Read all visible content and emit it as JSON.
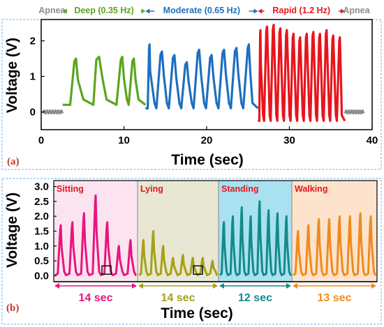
{
  "chart_data": [
    {
      "panel": "(a)",
      "type": "line",
      "xlabel": "Time (sec)",
      "ylabel": "Voltage (V)",
      "xlim": [
        0,
        40
      ],
      "ylim": [
        -0.5,
        2.6
      ],
      "xticks": [
        0,
        10,
        20,
        30,
        40
      ],
      "yticks": [
        0,
        1,
        2
      ],
      "phases": [
        {
          "label": "Apnea",
          "start": 0,
          "end": 2.6,
          "color": "#8c8c8c"
        },
        {
          "label": "Deep (0.35 Hz)",
          "start": 2.6,
          "end": 12.6,
          "color": "#5aa51e"
        },
        {
          "label": "Moderate (0.65 Hz)",
          "start": 12.6,
          "end": 26.2,
          "color": "#1e6fbf"
        },
        {
          "label": "Rapid (1.2 Hz)",
          "start": 26.2,
          "end": 36.7,
          "color": "#e8141c"
        },
        {
          "label": "Apnea",
          "start": 36.7,
          "end": 39.5,
          "color": "#8c8c8c"
        }
      ],
      "series": [
        {
          "color": "#8c8c8c",
          "x": [
            0.2,
            2.6
          ],
          "y": [
            0,
            0
          ],
          "kind": "flat"
        },
        {
          "color": "#5aa51e",
          "start": 2.6,
          "end": 12.6,
          "peaks_x": [
            4.2,
            7.0,
            9.8,
            11.2
          ],
          "peaks_y": [
            1.5,
            1.55,
            1.55,
            1.5
          ],
          "baseline": 0.2,
          "kind": "pulses"
        },
        {
          "color": "#1e6fbf",
          "start": 12.6,
          "end": 26.2,
          "peaks_x": [
            13.1,
            14.6,
            16.1,
            17.6,
            19.1,
            20.6,
            22.1,
            23.6,
            25.1
          ],
          "peaks_y": [
            1.9,
            1.7,
            1.6,
            1.4,
            1.75,
            1.6,
            1.75,
            1.8,
            1.9
          ],
          "baseline": 0.1,
          "kind": "pulses"
        },
        {
          "color": "#e8141c",
          "start": 26.2,
          "end": 36.7,
          "peaks_x": [
            26.5,
            27.3,
            28.1,
            28.9,
            29.7,
            30.5,
            31.3,
            32.1,
            32.9,
            33.7,
            34.5,
            35.3,
            36.1
          ],
          "peaks_y": [
            2.3,
            2.4,
            2.45,
            2.35,
            2.3,
            2.2,
            2.1,
            2.2,
            2.25,
            2.2,
            2.3,
            2.15,
            2.1
          ],
          "baseline": -0.25,
          "kind": "pulses"
        },
        {
          "color": "#8c8c8c",
          "x": [
            36.7,
            39.0
          ],
          "y": [
            0,
            0
          ],
          "kind": "flat"
        }
      ]
    },
    {
      "panel": "(b)",
      "type": "line",
      "xlabel": "Time (sec)",
      "ylabel": "Voltage (V)",
      "ylim": [
        -0.2,
        3.2
      ],
      "yticks": [
        0.0,
        0.5,
        1.0,
        1.5,
        2.0,
        2.5,
        3.0
      ],
      "ytick_labels": [
        "0.0",
        "0.5",
        "1.0",
        "1.5",
        "2.0",
        "2.5",
        "3.0"
      ],
      "segments": [
        {
          "label": "Sitting",
          "duration": "14 sec",
          "color": "#e8157e",
          "bg": "#fbe4ef",
          "peaks_y": [
            1.7,
            1.8,
            2.1,
            2.7,
            1.8,
            1.0,
            1.2
          ]
        },
        {
          "label": "Lying",
          "duration": "14 sec",
          "color": "#a7a017",
          "bg": "#e7e7d3",
          "peaks_y": [
            1.2,
            1.5,
            1.0,
            0.6,
            0.7,
            0.6,
            0.6,
            0.5
          ]
        },
        {
          "label": "Standing",
          "duration": "12 sec",
          "color": "#138a8a",
          "bg": "#a9e1f0",
          "peaks_y": [
            1.8,
            2.0,
            2.3,
            2.0,
            2.5,
            2.2,
            2.1,
            2.0
          ]
        },
        {
          "label": "Walking",
          "duration": "13 sec",
          "color": "#f08a1e",
          "bg": "#fde3cc",
          "peaks_y": [
            1.5,
            1.7,
            1.9,
            1.9,
            2.0,
            2.0,
            2.1,
            2.0
          ]
        }
      ]
    }
  ]
}
